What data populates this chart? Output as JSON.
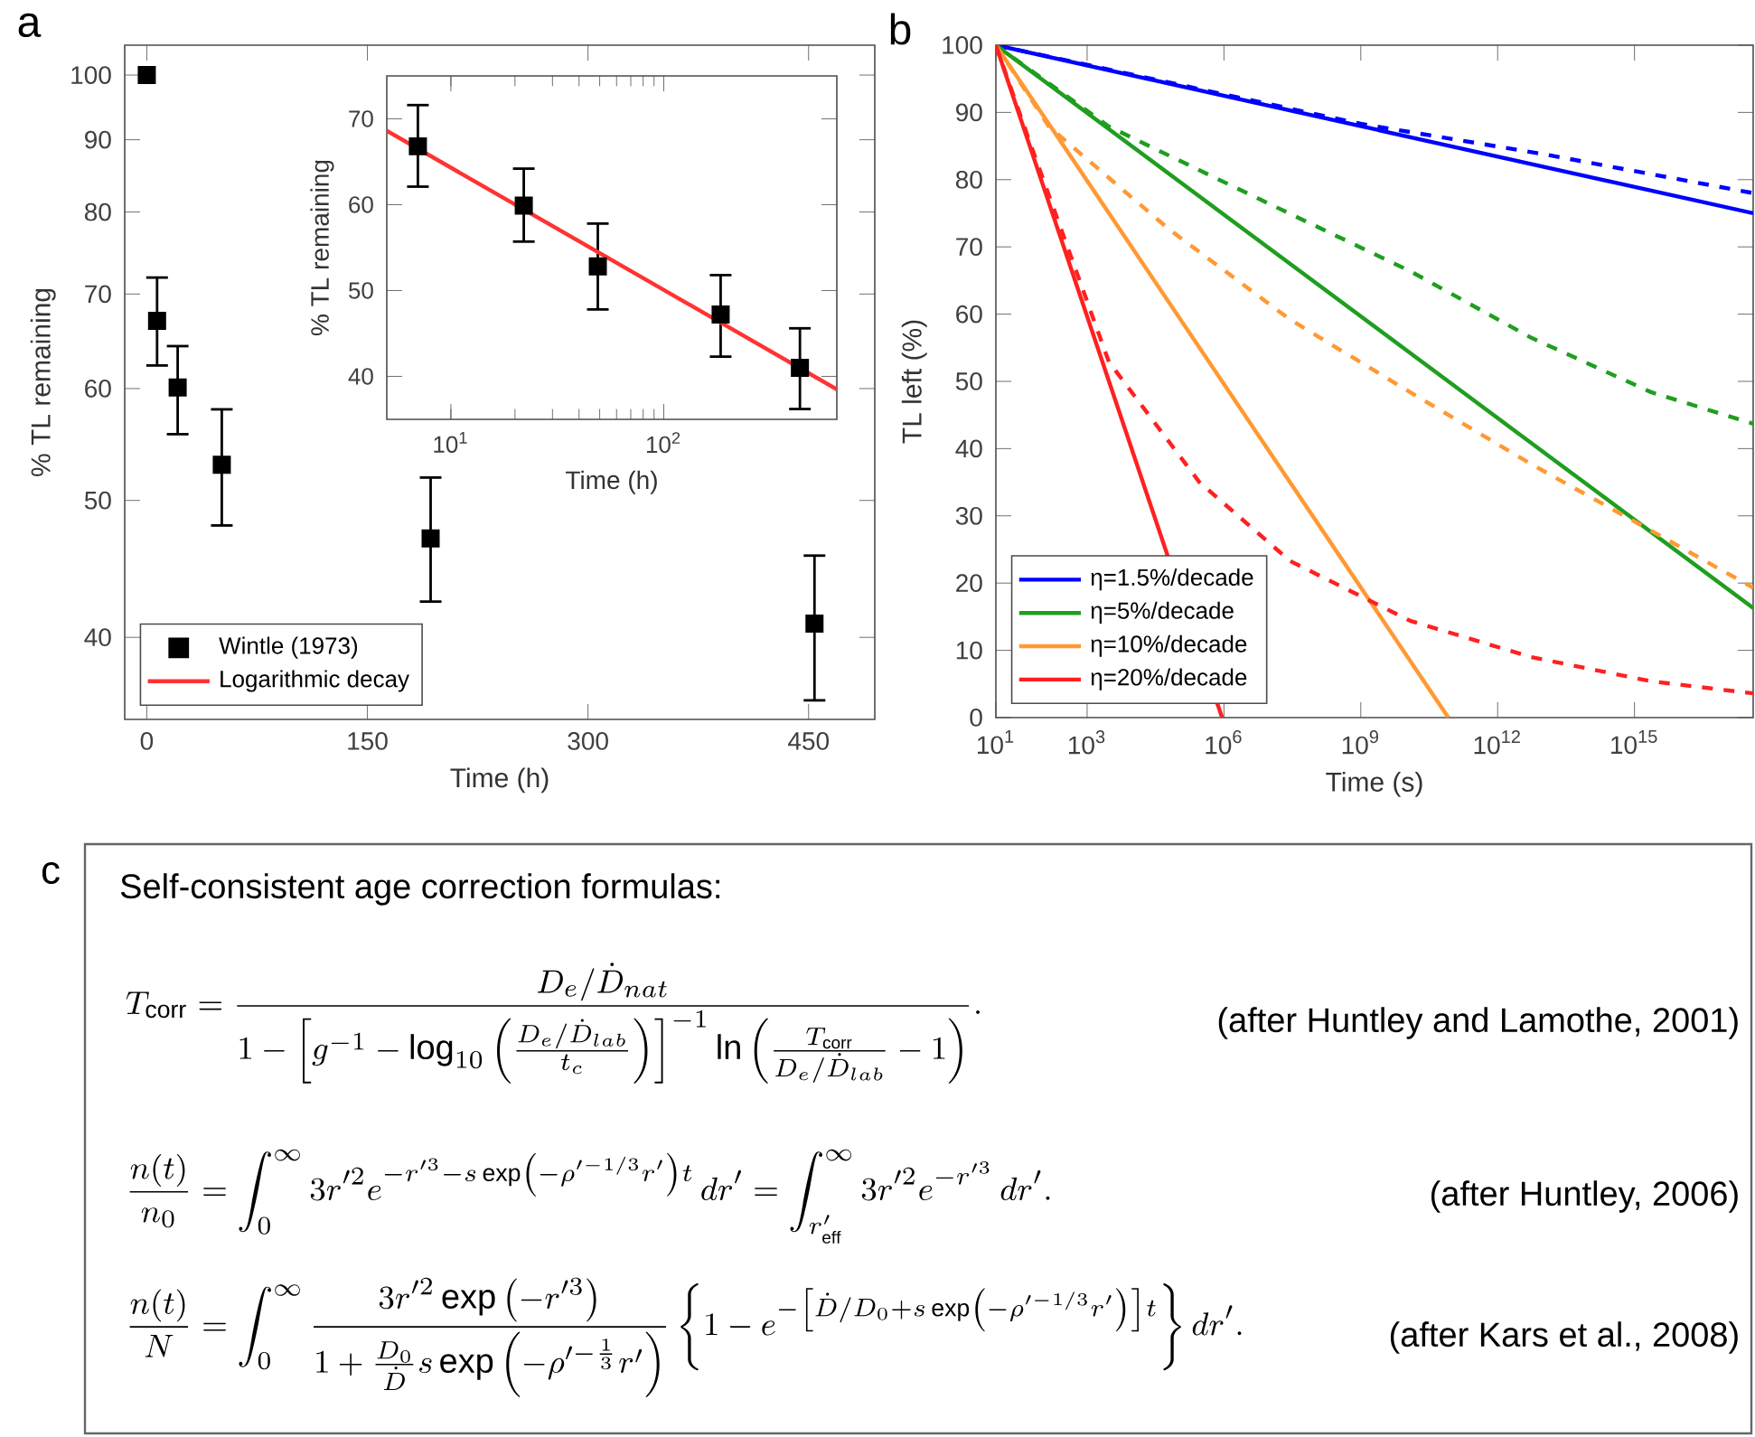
{
  "chart_data": [
    {
      "type": "scatter",
      "annotations": [
        "a"
      ],
      "xlabel": "Time (h)",
      "ylabel": "% TL remaining",
      "xlim": [
        -15,
        495
      ],
      "ylim": [
        35,
        105
      ],
      "xticks": [
        0,
        150,
        300,
        450
      ],
      "yticks": [
        40,
        50,
        60,
        70,
        80,
        90,
        100
      ],
      "log": "y",
      "legend": "bottom left",
      "marker": "square",
      "series": [
        {
          "name": "Wintle (1973)",
          "color": "#000000",
          "x": [
            0,
            7,
            21,
            51,
            193,
            454
          ],
          "values": [
            100,
            67,
            60.1,
            53,
            47,
            40.9
          ],
          "errors": [
            null,
            [
              62.3,
              71.9
            ],
            [
              55.7,
              64.3
            ],
            [
              48,
              58
            ],
            [
              42.4,
              51.9
            ],
            [
              36.1,
              45.7
            ]
          ]
        }
      ]
    },
    {
      "type": "scatter",
      "xlabel": "Time (h)",
      "ylabel": "% TL remaining",
      "xlim": [
        5,
        650
      ],
      "ylim": [
        35,
        75
      ],
      "xticks": [
        {
          "value": 10,
          "label": "10$^{1}$"
        },
        {
          "value": 100,
          "label": "10$^{2}$"
        }
      ],
      "yticks": [
        40,
        50,
        60,
        70
      ],
      "log": "x",
      "series": [
        {
          "color": "#000000",
          "marker": "square",
          "x": [
            7,
            22,
            49,
            185,
            436
          ],
          "values": [
            66.8,
            59.9,
            52.8,
            47.2,
            41.0
          ],
          "errors": [
            [
              62.1,
              71.6
            ],
            [
              55.7,
              64.2
            ],
            [
              47.8,
              57.8
            ],
            [
              42.3,
              51.8
            ],
            [
              36.2,
              45.6
            ]
          ]
        },
        {
          "name": "Logarithmic decay",
          "type": "line",
          "marker": "none",
          "color": "#ff3333",
          "x": [
            5,
            650
          ],
          "values": [
            68.6,
            38.5
          ]
        }
      ]
    },
    {
      "type": "line",
      "annotations": [
        "b"
      ],
      "xlabel": "Time (s)",
      "ylabel": "TL left (%)",
      "log": "x",
      "xlim": [
        10,
        4e+17
      ],
      "ylim": [
        0,
        100
      ],
      "xticks": [
        {
          "value": 10,
          "label": "10$^{1}$"
        },
        {
          "value": 1000,
          "label": "10$^{3}$"
        },
        {
          "value": 1000000.0,
          "label": "10$^{6}$"
        },
        {
          "value": 1000000000.0,
          "label": "10$^{9}$"
        },
        {
          "value": 1000000000000.0,
          "label": "10$^{12}$"
        },
        {
          "value": 1000000000000000.0,
          "label": "10$^{15}$"
        }
      ],
      "yticks": [
        0,
        10,
        20,
        30,
        40,
        50,
        60,
        70,
        80,
        90,
        100
      ],
      "legend": "bottom left",
      "series": [
        {
          "name": "η=1.5%/decade",
          "color": "#0000ff",
          "line_style": "solid",
          "x": [
            10,
            4e+17
          ],
          "values": [
            100,
            75
          ]
        },
        {
          "name": "η=5%/decade",
          "color": "#1f9e1f",
          "line_style": "solid",
          "x": [
            10,
            4e+17
          ],
          "values": [
            100,
            16.3
          ]
        },
        {
          "name": "η=10%/decade",
          "color": "#ff9933",
          "line_style": "solid",
          "x": [
            10,
            83000000000.0
          ],
          "values": [
            100,
            0
          ]
        },
        {
          "name": "η=20%/decade",
          "color": "#ff2020",
          "line_style": "solid",
          "x": [
            10,
            910000.0
          ],
          "values": [
            100,
            0
          ]
        },
        {
          "color": "#0000ff",
          "line_style": "dashed",
          "x": [
            10,
            1000000000.0,
            10000000000000.0,
            4e+17
          ],
          "values": [
            100,
            88.3,
            83.8,
            78
          ]
        },
        {
          "color": "#1f9e1f",
          "line_style": "dashed",
          "x": [
            10,
            3000,
            6000000.0,
            12000000000.0,
            5400000000000.0,
            2300000000000000.0,
            4e+17
          ],
          "values": [
            100,
            87.9,
            77.1,
            66.4,
            56.5,
            48.4,
            43.7
          ]
        },
        {
          "color": "#ff9933",
          "line_style": "dashed",
          "x": [
            10,
            145,
            63000.0,
            28000000.0,
            12000000000.0,
            5400000000000.0,
            2300000000000000.0,
            4e+17
          ],
          "values": [
            100,
            87.9,
            72.6,
            59.2,
            48.4,
            37.7,
            27.8,
            19.3
          ]
        },
        {
          "color": "#ff2020",
          "line_style": "dashed",
          "x": [
            10,
            58,
            3000,
            290000.0,
            28000000.0,
            12000000000.0,
            5400000000000.0,
            2300000000000000.0,
            4e+17
          ],
          "values": [
            100,
            85.2,
            52.9,
            35.0,
            23.3,
            14.4,
            9.0,
            5.4,
            3.6
          ]
        }
      ]
    },
    {
      "type": "other",
      "title": "Self-consistent age correction formulas:",
      "annotations": [
        "c",
        "T_{\\mathrm{corr}}=\\frac{D_e/\\dot{D}_{nat}}{1-\\left[g^{-1}-\\log_{10}\\left(\\frac{D_e/\\dot{D}_{lab}}{t_c}\\right)\\right]^{-1}\\ln\\left(\\frac{T_{\\mathrm{corr}}}{D_e/\\dot{D}_{lab}}-1\\right)}.",
        "(after Huntley and Lamothe, 2001)",
        "\\frac{n(t)}{n_0}=\\int_0^\\infty 3r'^2e^{-r'^3-s\\exp\\left(-\\rho'^{-1/3}r'\\right)t}\\,dr'=\\int_{r'_{\\mathrm{eff}}}^\\infty 3r'^2e^{-r'^3}\\,dr'.",
        "(after Huntley, 2006)",
        "\\frac{n(t)}{N}=\\int_0^\\infty\\frac{3r'^2\\exp\\left(-r'^3\\right)}{1+\\frac{D_0}{\\dot{D}}s\\exp\\left(-\\rho'^{-\\frac{1}{3}}r'\\right)}\\left\\{1-e^{-\\left[\\dot{D}/D_0+s\\exp\\left(-\\rho'^{-1/3}r'\\right)\\right]t}\\right\\}dr'.",
        "(after Kars et al., 2008)"
      ]
    }
  ]
}
